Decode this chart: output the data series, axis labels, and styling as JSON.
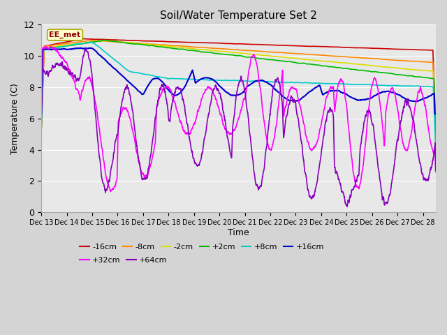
{
  "title": "Soil/Water Temperature Set 2",
  "xlabel": "Time",
  "ylabel": "Temperature (C)",
  "xlim": [
    0,
    15.5
  ],
  "ylim": [
    0,
    12
  ],
  "yticks": [
    0,
    2,
    4,
    6,
    8,
    10,
    12
  ],
  "xtick_labels": [
    "Dec 13",
    "Dec 14",
    "Dec 15",
    "Dec 16",
    "Dec 17",
    "Dec 18",
    "Dec 19",
    "Dec 20",
    "Dec 21",
    "Dec 22",
    "Dec 23",
    "Dec 24",
    "Dec 25",
    "Dec 26",
    "Dec 27",
    "Dec 28"
  ],
  "fig_bg": "#d4d4d4",
  "plot_bg": "#e8e8e8",
  "annotation_text": "EE_met",
  "series": {
    "-16cm": {
      "color": "#cc0000",
      "lw": 1.2
    },
    "-8cm": {
      "color": "#ff8800",
      "lw": 1.2
    },
    "-2cm": {
      "color": "#dddd00",
      "lw": 1.2
    },
    "+2cm": {
      "color": "#00bb00",
      "lw": 1.2
    },
    "+8cm": {
      "color": "#00cccc",
      "lw": 1.2
    },
    "+16cm": {
      "color": "#0000cc",
      "lw": 1.5
    },
    "+32cm": {
      "color": "#ff00ff",
      "lw": 1.2
    },
    "+64cm": {
      "color": "#8800bb",
      "lw": 1.2
    }
  },
  "legend_order": [
    "-16cm",
    "-8cm",
    "-2cm",
    "+2cm",
    "+8cm",
    "+16cm",
    "+32cm",
    "+64cm"
  ]
}
